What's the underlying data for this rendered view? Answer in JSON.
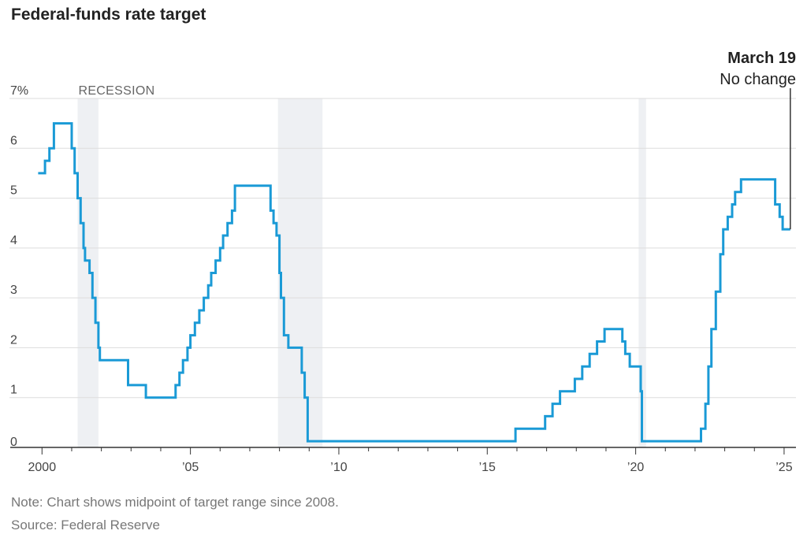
{
  "title": "Federal-funds rate target",
  "note": "Note: Chart shows midpoint of target range since 2008.",
  "source": "Source: Federal Reserve",
  "colors": {
    "line": "#1a9ad6",
    "recession": "#eef0f3",
    "grid": "#dddddd",
    "axis": "#333333"
  },
  "chart_data": {
    "type": "line",
    "title": "Federal-funds rate target",
    "xlabel": "",
    "ylabel": "",
    "xlim": [
      1999.7,
      2025.4
    ],
    "ylim": [
      0,
      7
    ],
    "y_ticks": [
      0,
      1,
      2,
      3,
      4,
      5,
      6,
      7
    ],
    "y_tick_labels": [
      "0",
      "1",
      "2",
      "3",
      "4",
      "5",
      "6",
      "7%"
    ],
    "x_ticks": [
      2000,
      2005,
      2010,
      2015,
      2020,
      2025
    ],
    "x_tick_labels": [
      "2000",
      "’05",
      "’10",
      "’15",
      "’20",
      "’25"
    ],
    "grid": true,
    "recession_label": "RECESSION",
    "recessions": [
      [
        2001.2,
        2001.9
      ],
      [
        2007.95,
        2009.45
      ],
      [
        2020.1,
        2020.35
      ]
    ],
    "annotation": {
      "date": "March 19",
      "text": "No change",
      "x": 2025.21,
      "y": 4.375
    },
    "series": [
      {
        "type": "step",
        "x": [
          1999.87,
          2000.1,
          2000.25,
          2000.4,
          2001.0,
          2001.1,
          2001.2,
          2001.3,
          2001.4,
          2001.45,
          2001.6,
          2001.7,
          2001.8,
          2001.9,
          2001.95,
          2002.9,
          2003.5,
          2004.5,
          2004.63,
          2004.75,
          2004.9,
          2005.0,
          2005.15,
          2005.3,
          2005.45,
          2005.6,
          2005.7,
          2005.85,
          2006.0,
          2006.1,
          2006.25,
          2006.4,
          2006.5,
          2007.7,
          2007.8,
          2007.9,
          2008.0,
          2008.05,
          2008.15,
          2008.3,
          2008.75,
          2008.85,
          2008.95,
          2015.95,
          2016.95,
          2017.2,
          2017.45,
          2017.95,
          2018.2,
          2018.45,
          2018.7,
          2018.95,
          2019.55,
          2019.65,
          2019.8,
          2020.17,
          2020.21,
          2022.2,
          2022.35,
          2022.45,
          2022.55,
          2022.7,
          2022.85,
          2022.95,
          2023.1,
          2023.25,
          2023.35,
          2023.55,
          2024.7,
          2024.85,
          2024.95,
          2025.21
        ],
        "y": [
          5.5,
          5.75,
          6.0,
          6.5,
          6.0,
          5.5,
          5.0,
          4.5,
          4.0,
          3.75,
          3.5,
          3.0,
          2.5,
          2.0,
          1.75,
          1.25,
          1.0,
          1.25,
          1.5,
          1.75,
          2.0,
          2.25,
          2.5,
          2.75,
          3.0,
          3.25,
          3.5,
          3.75,
          4.0,
          4.25,
          4.5,
          4.75,
          5.25,
          4.75,
          4.5,
          4.25,
          3.5,
          3.0,
          2.25,
          2.0,
          1.5,
          1.0,
          0.125,
          0.375,
          0.625,
          0.875,
          1.125,
          1.375,
          1.625,
          1.875,
          2.125,
          2.375,
          2.125,
          1.875,
          1.625,
          1.125,
          0.125,
          0.375,
          0.875,
          1.625,
          2.375,
          3.125,
          3.875,
          4.375,
          4.625,
          4.875,
          5.125,
          5.375,
          4.875,
          4.625,
          4.375,
          4.375
        ]
      }
    ]
  }
}
